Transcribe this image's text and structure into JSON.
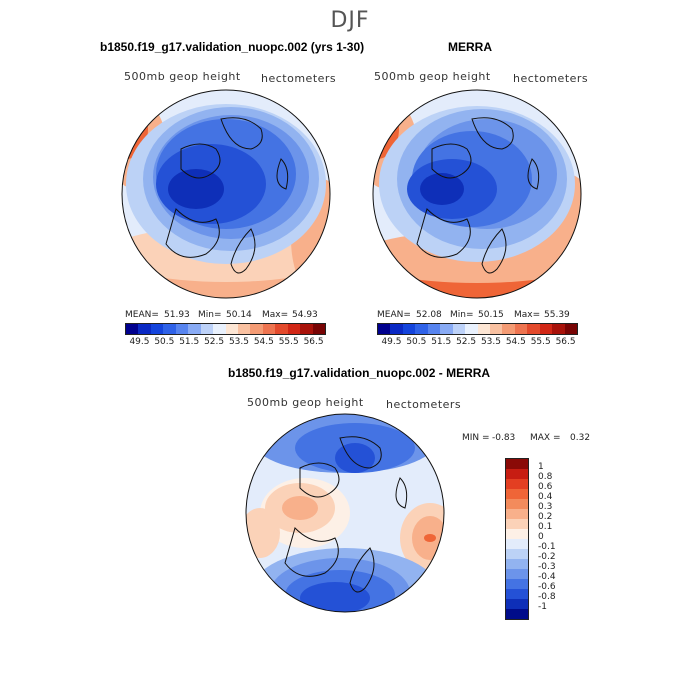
{
  "season": "DJF",
  "panel1": {
    "title": "b1850.f19_g17.validation_nuopc.002 (yrs 1-30)",
    "left_label": "500mb geop height",
    "right_label": "hectometers",
    "mean_label": "MEAN=",
    "mean": "51.93",
    "min_label": "Min=",
    "min": "50.14",
    "max_label": "Max=",
    "max": "54.93"
  },
  "panel2": {
    "title": "MERRA",
    "left_label": "500mb geop height",
    "right_label": "hectometers",
    "mean_label": "MEAN=",
    "mean": "52.08",
    "min_label": "Min=",
    "min": "50.15",
    "max_label": "Max=",
    "max": "55.39"
  },
  "panel3": {
    "title": "b1850.f19_g17.validation_nuopc.002 - MERRA",
    "left_label": "500mb geop height",
    "right_label": "hectometers",
    "min_label": "MIN =",
    "min": "-0.83",
    "max_label": "MAX =",
    "max": "0.32"
  },
  "colorbar_abs": {
    "ticks": [
      "49.5",
      "50.5",
      "51.5",
      "52.5",
      "53.5",
      "54.5",
      "55.5",
      "56.5"
    ],
    "colors": [
      "#00008e",
      "#0a29c4",
      "#1444dc",
      "#2f62e8",
      "#5784ef",
      "#89abf5",
      "#bdd2f9",
      "#e9f1fd",
      "#fde6d4",
      "#f9c1a1",
      "#f49b74",
      "#ee7450",
      "#e34a2c",
      "#d12716",
      "#a8120a",
      "#780404"
    ]
  },
  "colorbar_diff": {
    "ticks": [
      "1",
      "0.8",
      "0.6",
      "0.4",
      "0.3",
      "0.2",
      "0.1",
      "0",
      "-0.1",
      "-0.2",
      "-0.3",
      "-0.4",
      "-0.6",
      "-0.8",
      "-1"
    ],
    "colors": [
      "#8a0a07",
      "#c71d12",
      "#e33f22",
      "#ef6537",
      "#f38b5c",
      "#f8b08b",
      "#fbd2b8",
      "#fdf0e6",
      "#e3ecfb",
      "#bcd2f6",
      "#92b3f0",
      "#6c94ea",
      "#4473e3",
      "#2451d6",
      "#0e2fb8",
      "#000c8a"
    ]
  }
}
